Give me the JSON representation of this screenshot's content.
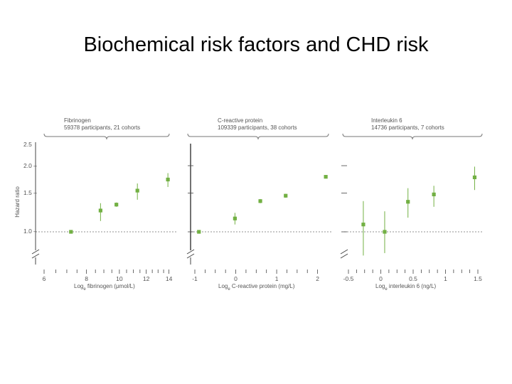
{
  "slide": {
    "title": "Biochemical risk factors and CHD risk"
  },
  "colors": {
    "marker": "#72b043",
    "axis": "#444444",
    "text": "#555555",
    "dashed": "#6c6c6c"
  },
  "chart_data": [
    {
      "type": "scatter",
      "panel_title": "Fibrinogen",
      "panel_subtitle": "59378 participants, 21 cohorts",
      "xlabel": "Log",
      "xlabel_sub": "e",
      "xlabel_rest": " fibrinogen (μmol/L)",
      "ylabel": "Hazard ratio",
      "x_scale": "log",
      "x_ticks": [
        6,
        8,
        10,
        12,
        14
      ],
      "x_range": [
        6,
        14.3
      ],
      "y_ticks": [
        "2.5",
        "2.0 –",
        "1.5 –",
        "1.0 –"
      ],
      "y_range": [
        0.9,
        2.5
      ],
      "reference_line": 1.0,
      "points": [
        {
          "x": 7.2,
          "y": 1.0,
          "lo": 1.0,
          "hi": 1.0
        },
        {
          "x": 8.8,
          "y": 1.25,
          "lo": 1.12,
          "hi": 1.35
        },
        {
          "x": 9.8,
          "y": 1.33,
          "lo": 1.3,
          "hi": 1.36
        },
        {
          "x": 11.3,
          "y": 1.54,
          "lo": 1.4,
          "hi": 1.66
        },
        {
          "x": 13.9,
          "y": 1.73,
          "lo": 1.6,
          "hi": 1.85
        }
      ]
    },
    {
      "type": "scatter",
      "panel_title": "C-reactive protein",
      "panel_subtitle": "109339 participants, 38 cohorts",
      "xlabel": "Log",
      "xlabel_sub": "e",
      "xlabel_rest": " C-reactive protein (mg/L)",
      "x_ticks": [
        -1,
        0,
        1,
        2
      ],
      "x_range": [
        -1,
        2.25
      ],
      "y_range": [
        0.9,
        2.5
      ],
      "reference_line": 1.0,
      "points": [
        {
          "x": -0.9,
          "y": 1.0,
          "lo": 1.0,
          "hi": 1.0
        },
        {
          "x": -0.02,
          "y": 1.15,
          "lo": 1.08,
          "hi": 1.22
        },
        {
          "x": 0.6,
          "y": 1.38,
          "lo": 1.35,
          "hi": 1.41
        },
        {
          "x": 1.22,
          "y": 1.46,
          "lo": 1.43,
          "hi": 1.49
        },
        {
          "x": 2.2,
          "y": 1.78,
          "lo": 1.75,
          "hi": 1.81
        }
      ]
    },
    {
      "type": "scatter",
      "panel_title": "Interleukin 6",
      "panel_subtitle": "14736 participants, 7 cohorts",
      "xlabel": "Log",
      "xlabel_sub": "e",
      "xlabel_rest": " interleukin 6 (ng/L)",
      "x_ticks": [
        "-0.5",
        "0",
        "0.5",
        "1",
        "1.5"
      ],
      "x_tick_values": [
        -0.5,
        0,
        0.5,
        1,
        1.5
      ],
      "x_range": [
        -0.5,
        1.5
      ],
      "y_range": [
        0.9,
        2.5
      ],
      "reference_line": 1.0,
      "points": [
        {
          "x": -0.27,
          "y": 1.08,
          "lo": 0.78,
          "hi": 1.38
        },
        {
          "x": 0.06,
          "y": 1.0,
          "lo": 0.8,
          "hi": 1.24
        },
        {
          "x": 0.42,
          "y": 1.37,
          "lo": 1.16,
          "hi": 1.58
        },
        {
          "x": 0.82,
          "y": 1.48,
          "lo": 1.3,
          "hi": 1.62
        },
        {
          "x": 1.45,
          "y": 1.77,
          "lo": 1.55,
          "hi": 1.98
        }
      ]
    }
  ]
}
